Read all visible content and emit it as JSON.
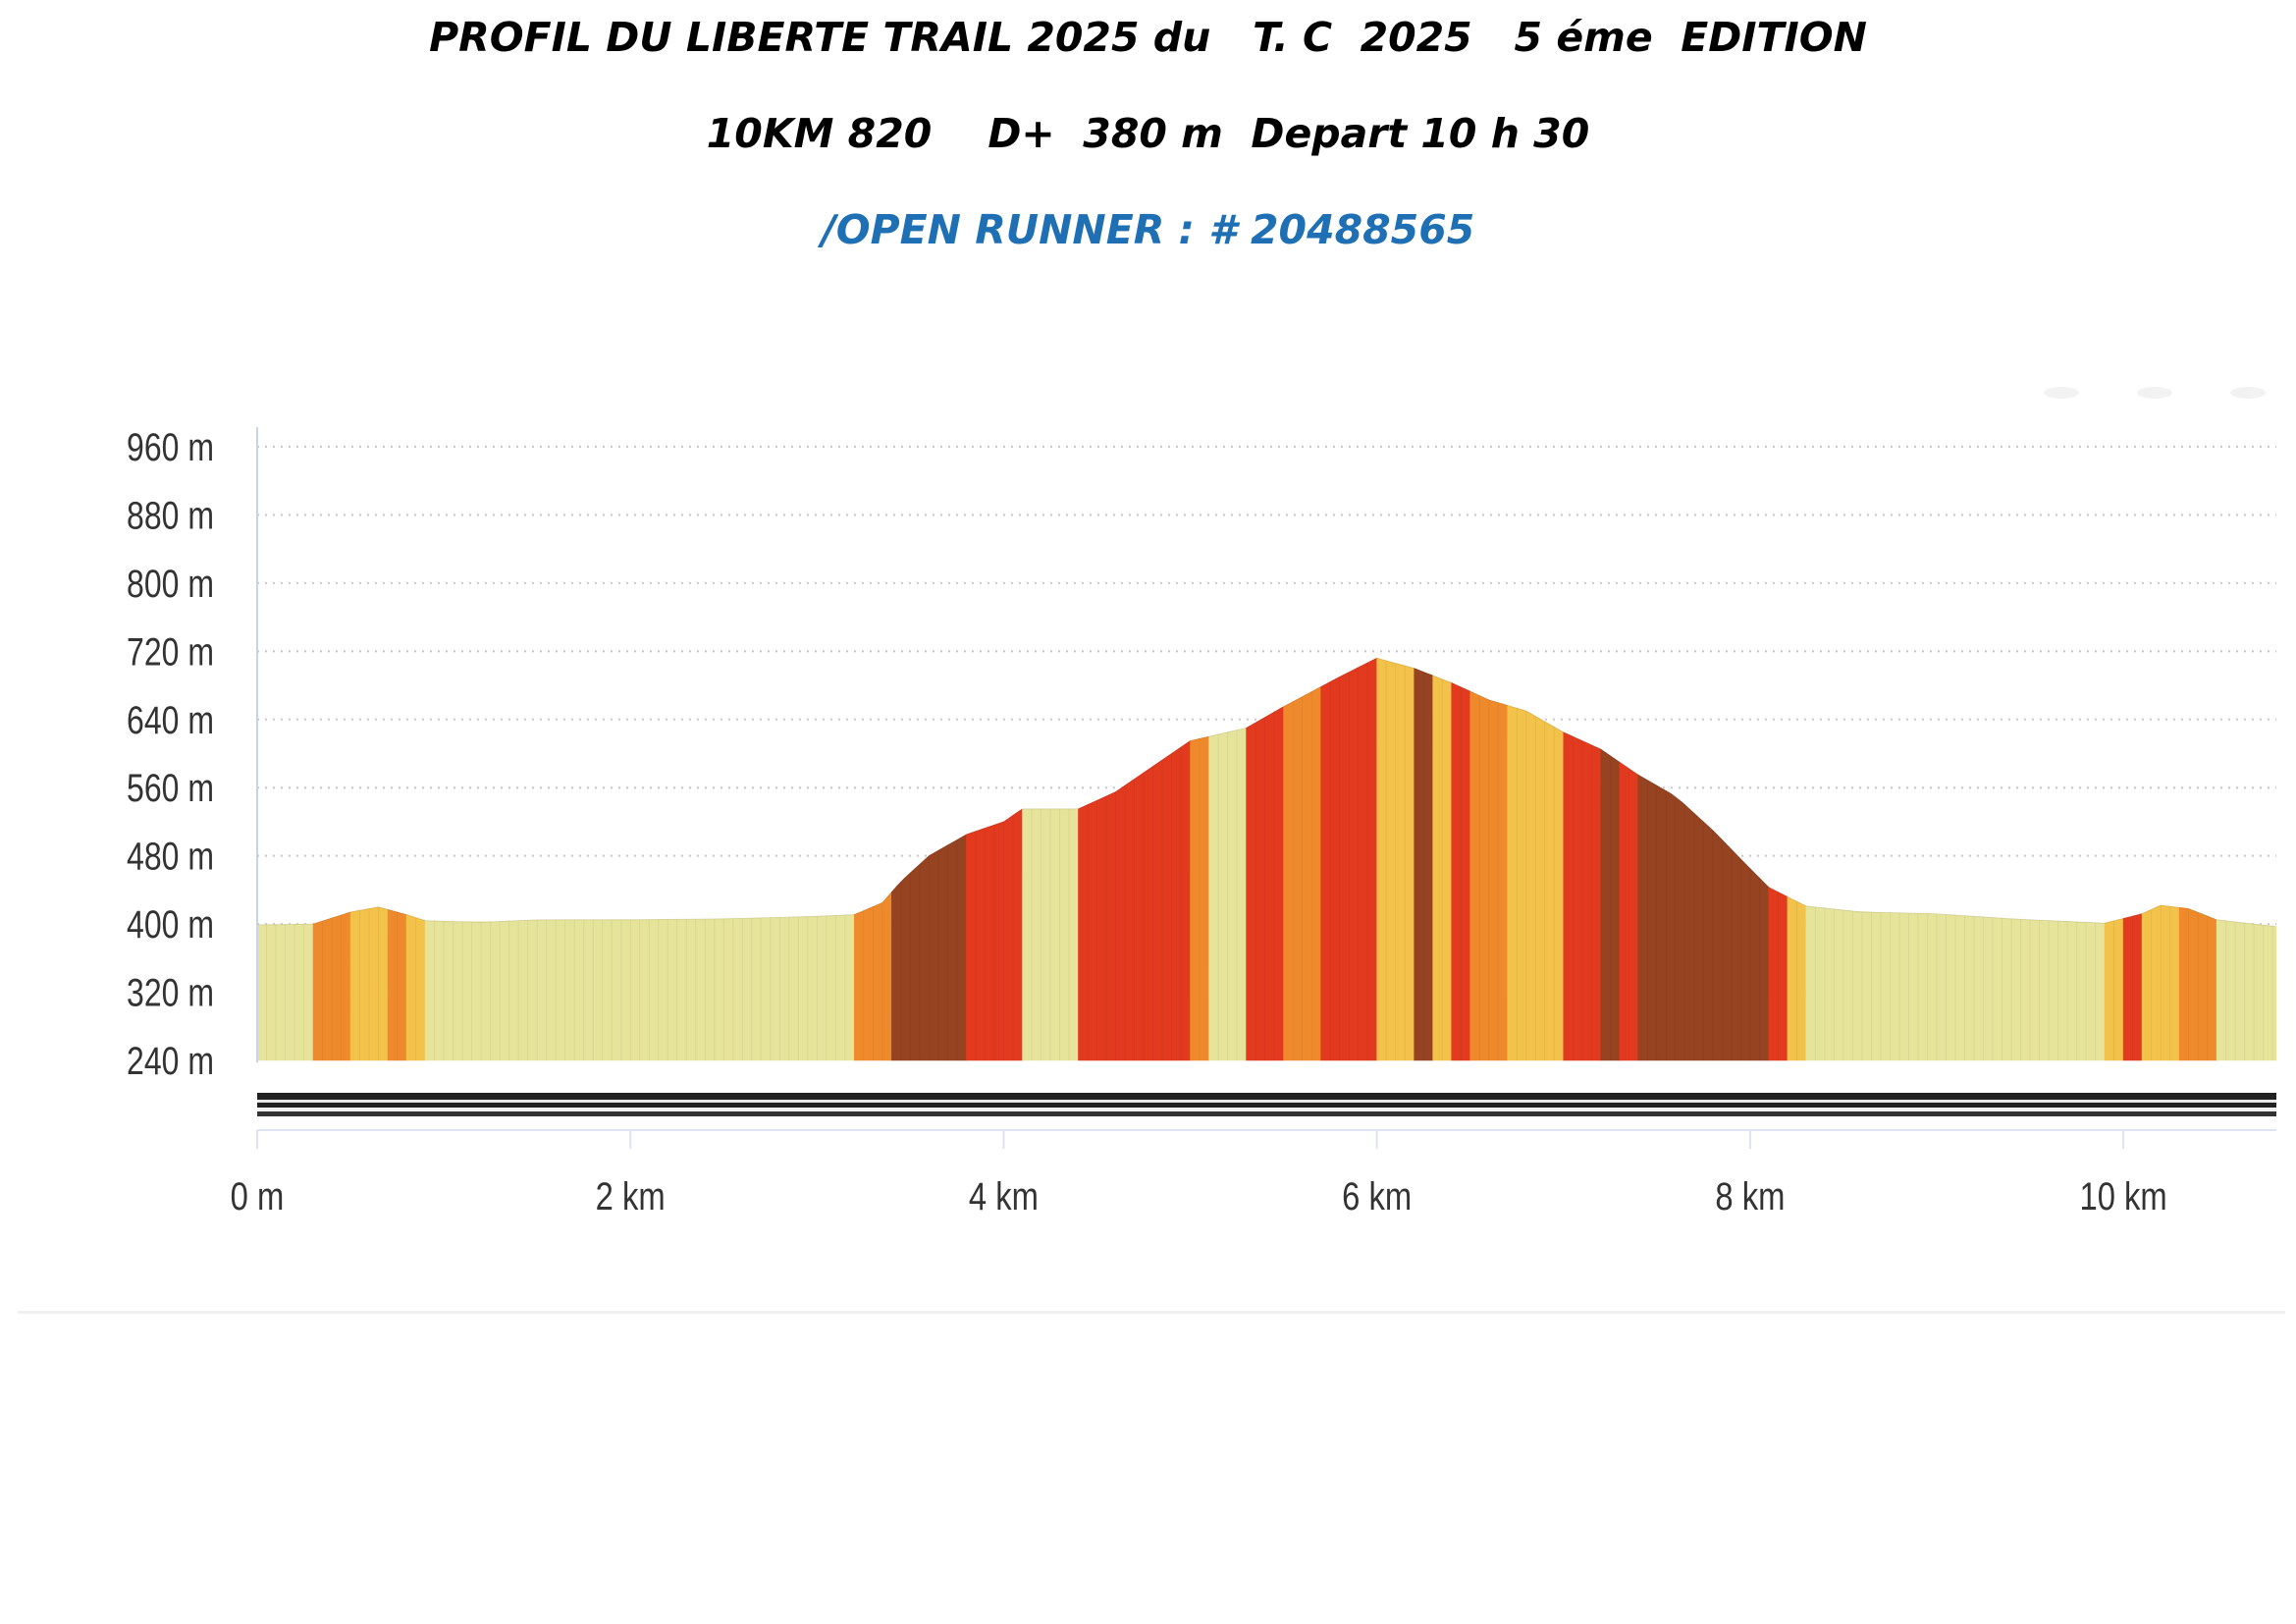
{
  "header": {
    "title_line1": "PROFIL DU LIBERTE TRAIL 2025 du   T. C  2025   5 éme  EDITION",
    "title_line2": "10KM 820    D+  380 m  Depart 10 h 30",
    "title_line3": "/OPEN RUNNER : # 20488565",
    "title_line3_color": "#1f6fb5"
  },
  "chart_data": {
    "type": "area",
    "title": "",
    "xlabel": "",
    "ylabel": "",
    "x_unit": "km",
    "y_unit": "m",
    "xlim": [
      0,
      10.82
    ],
    "ylim": [
      240,
      960
    ],
    "yticks": [
      240,
      320,
      400,
      480,
      560,
      640,
      720,
      800,
      880,
      960
    ],
    "ytick_labels": [
      "240 m",
      "320 m",
      "400 m",
      "480 m",
      "560 m",
      "640 m",
      "720 m",
      "800 m",
      "880 m",
      "960 m"
    ],
    "xticks": [
      0,
      2,
      4,
      6,
      8,
      10
    ],
    "xtick_labels": [
      "0 m",
      "2 km",
      "4 km",
      "6 km",
      "8 km",
      "10 km"
    ],
    "grid": "horizontal-dotted",
    "slope_colors": {
      "flat": "#e6e39a",
      "gentle": "#f2c24a",
      "moderate": "#ef8a2c",
      "steep": "#e23a1f",
      "very_steep": "#964321"
    },
    "profile": {
      "x": [
        0,
        0.3,
        0.5,
        0.65,
        0.8,
        0.9,
        1.2,
        1.5,
        2.0,
        2.5,
        3.0,
        3.2,
        3.35,
        3.45,
        3.6,
        3.8,
        4.0,
        4.1,
        4.4,
        4.6,
        4.8,
        5.0,
        5.3,
        5.5,
        5.8,
        6.0,
        6.2,
        6.4,
        6.6,
        6.8,
        7.0,
        7.2,
        7.4,
        7.6,
        7.8,
        8.0,
        8.1,
        8.2,
        8.3,
        8.6,
        9.0,
        9.4,
        9.9,
        10.1,
        10.2,
        10.35,
        10.5,
        10.82
      ],
      "y": [
        399,
        400,
        414,
        420,
        411,
        404,
        402,
        405,
        405,
        406,
        409,
        411,
        425,
        450,
        480,
        505,
        520,
        535,
        535,
        555,
        585,
        615,
        630,
        655,
        690,
        712,
        700,
        683,
        663,
        650,
        625,
        605,
        575,
        550,
        510,
        465,
        443,
        432,
        421,
        414,
        412,
        406,
        401,
        412,
        422,
        418,
        405,
        397
      ]
    },
    "segments": [
      {
        "from": 0,
        "to": 0.3,
        "slope": "flat"
      },
      {
        "from": 0.3,
        "to": 0.5,
        "slope": "moderate"
      },
      {
        "from": 0.5,
        "to": 0.7,
        "slope": "gentle"
      },
      {
        "from": 0.7,
        "to": 0.8,
        "slope": "moderate"
      },
      {
        "from": 0.8,
        "to": 0.9,
        "slope": "gentle"
      },
      {
        "from": 0.9,
        "to": 3.2,
        "slope": "flat"
      },
      {
        "from": 3.2,
        "to": 3.4,
        "slope": "moderate"
      },
      {
        "from": 3.4,
        "to": 3.8,
        "slope": "very_steep"
      },
      {
        "from": 3.8,
        "to": 4.1,
        "slope": "steep"
      },
      {
        "from": 4.1,
        "to": 4.4,
        "slope": "flat"
      },
      {
        "from": 4.4,
        "to": 5.0,
        "slope": "steep"
      },
      {
        "from": 5.0,
        "to": 5.1,
        "slope": "moderate"
      },
      {
        "from": 5.1,
        "to": 5.3,
        "slope": "flat"
      },
      {
        "from": 5.3,
        "to": 5.5,
        "slope": "steep"
      },
      {
        "from": 5.5,
        "to": 5.7,
        "slope": "moderate"
      },
      {
        "from": 5.7,
        "to": 6.0,
        "slope": "steep"
      },
      {
        "from": 6.0,
        "to": 6.2,
        "slope": "gentle"
      },
      {
        "from": 6.2,
        "to": 6.3,
        "slope": "very_steep"
      },
      {
        "from": 6.3,
        "to": 6.4,
        "slope": "gentle"
      },
      {
        "from": 6.4,
        "to": 6.5,
        "slope": "steep"
      },
      {
        "from": 6.5,
        "to": 6.7,
        "slope": "moderate"
      },
      {
        "from": 6.7,
        "to": 7.0,
        "slope": "gentle"
      },
      {
        "from": 7.0,
        "to": 7.2,
        "slope": "steep"
      },
      {
        "from": 7.2,
        "to": 7.3,
        "slope": "very_steep"
      },
      {
        "from": 7.3,
        "to": 7.4,
        "slope": "steep"
      },
      {
        "from": 7.4,
        "to": 8.1,
        "slope": "very_steep"
      },
      {
        "from": 8.1,
        "to": 8.2,
        "slope": "steep"
      },
      {
        "from": 8.2,
        "to": 8.3,
        "slope": "gentle"
      },
      {
        "from": 8.3,
        "to": 9.9,
        "slope": "flat"
      },
      {
        "from": 9.9,
        "to": 10.0,
        "slope": "gentle"
      },
      {
        "from": 10.0,
        "to": 10.1,
        "slope": "steep"
      },
      {
        "from": 10.1,
        "to": 10.3,
        "slope": "gentle"
      },
      {
        "from": 10.3,
        "to": 10.5,
        "slope": "moderate"
      },
      {
        "from": 10.5,
        "to": 10.82,
        "slope": "flat"
      }
    ]
  }
}
